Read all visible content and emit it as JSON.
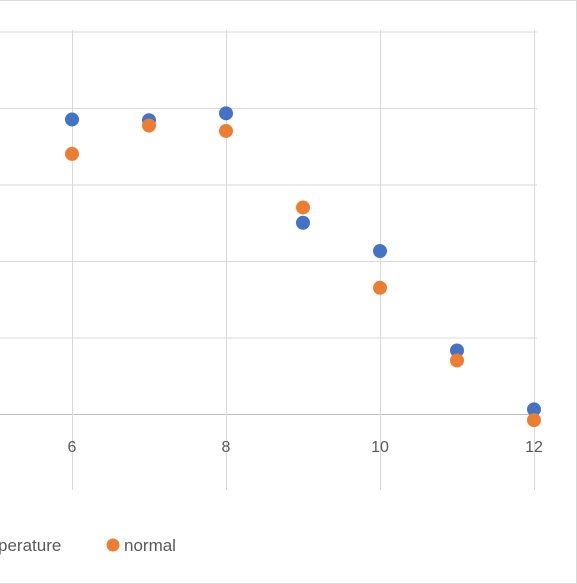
{
  "chart_data": {
    "type": "scatter",
    "title": "",
    "xlabel": "",
    "ylabel": "",
    "xlim": [
      5,
      12
    ],
    "ylim": [
      0,
      5
    ],
    "x_ticks": [
      6,
      8,
      10,
      12
    ],
    "x_tick_labels": [
      "6",
      "8",
      "10",
      "12"
    ],
    "grid": true,
    "legend_position": "bottom",
    "series": [
      {
        "name": "temperature",
        "legend_visible_text": "perature",
        "color": "#4472C4",
        "points": [
          {
            "x": 6,
            "y": 3.85
          },
          {
            "x": 7,
            "y": 3.84
          },
          {
            "x": 8,
            "y": 3.93
          },
          {
            "x": 9,
            "y": 2.5
          },
          {
            "x": 10,
            "y": 2.13
          },
          {
            "x": 11,
            "y": 0.83
          },
          {
            "x": 12,
            "y": 0.06
          }
        ]
      },
      {
        "name": "normal",
        "legend_visible_text": "normal",
        "color": "#ED7D31",
        "points": [
          {
            "x": 6,
            "y": 3.4
          },
          {
            "x": 7,
            "y": 3.77
          },
          {
            "x": 8,
            "y": 3.7
          },
          {
            "x": 9,
            "y": 2.7
          },
          {
            "x": 10,
            "y": 1.65
          },
          {
            "x": 11,
            "y": 0.7
          },
          {
            "x": 12,
            "y": -0.08
          }
        ]
      }
    ]
  }
}
